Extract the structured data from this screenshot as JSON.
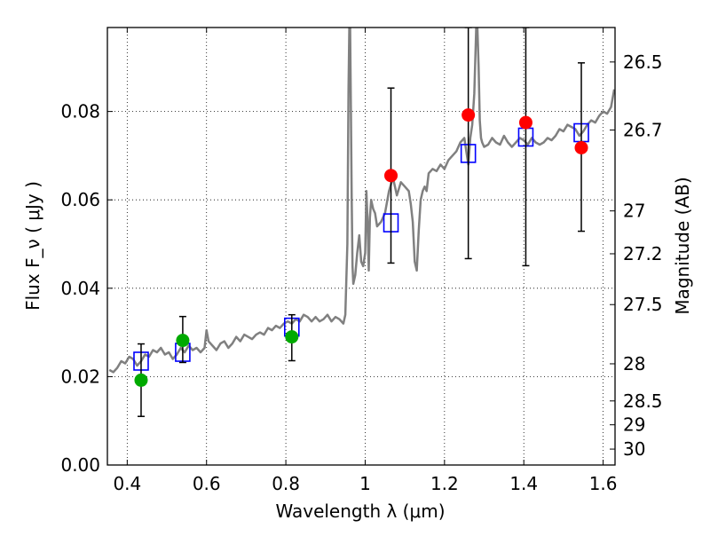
{
  "chart_data": {
    "type": "scatter",
    "xlabel": "Wavelength  λ (μm)",
    "ylabel": "Flux  F_ν  ( μJy )",
    "y2label": "Magnitude (AB)",
    "xlim": [
      0.35,
      1.63
    ],
    "ylim": [
      0.0,
      0.099
    ],
    "grid": true,
    "x_ticks": [
      0.4,
      0.6,
      0.8,
      1.0,
      1.2,
      1.4,
      1.6
    ],
    "x_tick_labels": [
      "0.4",
      "0.6",
      "0.8",
      "1",
      "1.2",
      "1.4",
      "1.6"
    ],
    "y_ticks": [
      0.0,
      0.02,
      0.04,
      0.06,
      0.08
    ],
    "y_tick_labels": [
      "0.00",
      "0.02",
      "0.04",
      "0.06",
      "0.08"
    ],
    "y2_ticks": [
      {
        "label": "26.5",
        "flux": 0.0912
      },
      {
        "label": "26.7",
        "flux": 0.0758
      },
      {
        "label": "27",
        "flux": 0.0575
      },
      {
        "label": "27.2",
        "flux": 0.0478
      },
      {
        "label": "27.5",
        "flux": 0.0363
      },
      {
        "label": "28",
        "flux": 0.0229
      },
      {
        "label": "28.5",
        "flux": 0.0145
      },
      {
        "label": "29",
        "flux": 0.0091
      },
      {
        "label": "30",
        "flux": 0.0036
      }
    ],
    "series": [
      {
        "kind": "line",
        "color": "#808080",
        "x": [
          0.355,
          0.365,
          0.375,
          0.385,
          0.395,
          0.405,
          0.415,
          0.425,
          0.435,
          0.445,
          0.455,
          0.465,
          0.475,
          0.485,
          0.495,
          0.505,
          0.515,
          0.525,
          0.535,
          0.545,
          0.555,
          0.565,
          0.575,
          0.585,
          0.595,
          0.6,
          0.605,
          0.615,
          0.625,
          0.635,
          0.645,
          0.655,
          0.665,
          0.675,
          0.685,
          0.695,
          0.705,
          0.715,
          0.725,
          0.735,
          0.745,
          0.755,
          0.765,
          0.775,
          0.785,
          0.795,
          0.805,
          0.815,
          0.825,
          0.835,
          0.845,
          0.855,
          0.865,
          0.875,
          0.885,
          0.895,
          0.905,
          0.915,
          0.925,
          0.935,
          0.945,
          0.95,
          0.955,
          0.958,
          0.96,
          0.962,
          0.964,
          0.966,
          0.968,
          0.97,
          0.975,
          0.98,
          0.985,
          0.99,
          0.995,
          1.0,
          1.003,
          1.006,
          1.009,
          1.012,
          1.015,
          1.02,
          1.025,
          1.03,
          1.04,
          1.05,
          1.06,
          1.07,
          1.08,
          1.09,
          1.1,
          1.11,
          1.115,
          1.12,
          1.125,
          1.13,
          1.135,
          1.14,
          1.145,
          1.15,
          1.155,
          1.16,
          1.17,
          1.18,
          1.19,
          1.2,
          1.21,
          1.22,
          1.23,
          1.24,
          1.25,
          1.255,
          1.26,
          1.265,
          1.27,
          1.275,
          1.28,
          1.283,
          1.286,
          1.289,
          1.292,
          1.295,
          1.3,
          1.31,
          1.32,
          1.33,
          1.34,
          1.35,
          1.36,
          1.37,
          1.38,
          1.39,
          1.4,
          1.41,
          1.42,
          1.43,
          1.44,
          1.45,
          1.46,
          1.47,
          1.48,
          1.49,
          1.5,
          1.51,
          1.52,
          1.53,
          1.54,
          1.55,
          1.56,
          1.57,
          1.58,
          1.59,
          1.6,
          1.61,
          1.62,
          1.628
        ],
        "y": [
          0.0215,
          0.021,
          0.022,
          0.0235,
          0.023,
          0.0245,
          0.024,
          0.0225,
          0.0235,
          0.025,
          0.0245,
          0.026,
          0.0255,
          0.0265,
          0.025,
          0.0255,
          0.024,
          0.025,
          0.0265,
          0.0255,
          0.027,
          0.026,
          0.0265,
          0.0255,
          0.0265,
          0.0305,
          0.028,
          0.027,
          0.026,
          0.0275,
          0.028,
          0.0265,
          0.0275,
          0.029,
          0.028,
          0.0295,
          0.029,
          0.0285,
          0.0295,
          0.03,
          0.0295,
          0.031,
          0.0305,
          0.0315,
          0.031,
          0.032,
          0.0325,
          0.032,
          0.033,
          0.0325,
          0.034,
          0.0335,
          0.0325,
          0.0335,
          0.0325,
          0.033,
          0.034,
          0.0325,
          0.0335,
          0.033,
          0.032,
          0.034,
          0.05,
          0.085,
          0.099,
          0.099,
          0.08,
          0.06,
          0.045,
          0.041,
          0.043,
          0.048,
          0.052,
          0.046,
          0.045,
          0.048,
          0.062,
          0.055,
          0.044,
          0.056,
          0.06,
          0.058,
          0.057,
          0.054,
          0.055,
          0.057,
          0.062,
          0.065,
          0.061,
          0.064,
          0.063,
          0.062,
          0.059,
          0.055,
          0.046,
          0.044,
          0.053,
          0.06,
          0.062,
          0.063,
          0.062,
          0.066,
          0.067,
          0.0665,
          0.068,
          0.067,
          0.069,
          0.07,
          0.071,
          0.073,
          0.074,
          0.071,
          0.068,
          0.074,
          0.077,
          0.084,
          0.099,
          0.099,
          0.09,
          0.078,
          0.074,
          0.073,
          0.072,
          0.0725,
          0.074,
          0.073,
          0.0725,
          0.0745,
          0.073,
          0.072,
          0.073,
          0.074,
          0.0735,
          0.0725,
          0.074,
          0.073,
          0.0725,
          0.073,
          0.074,
          0.0735,
          0.0745,
          0.076,
          0.0755,
          0.077,
          0.0765,
          0.076,
          0.0745,
          0.0755,
          0.077,
          0.078,
          0.0775,
          0.079,
          0.08,
          0.0795,
          0.081,
          0.085
        ]
      },
      {
        "kind": "points",
        "color": "#00aa00",
        "x": [
          0.435,
          0.54,
          0.815
        ],
        "y": [
          0.0192,
          0.0282,
          0.029
        ],
        "err_lo": [
          0.011,
          0.0232,
          0.0236
        ],
        "err_hi": [
          0.0274,
          0.0336,
          0.034
        ]
      },
      {
        "kind": "points",
        "color": "#ff0000",
        "x": [
          1.065,
          1.26,
          1.405,
          1.545
        ],
        "y": [
          0.0655,
          0.0792,
          0.0775,
          0.0718
        ],
        "err_lo": [
          0.0457,
          0.0467,
          0.0451,
          0.0529
        ],
        "err_hi": [
          0.0853,
          0.099,
          0.099,
          0.091
        ]
      },
      {
        "kind": "model-boxes",
        "color": "#0000ff",
        "x": [
          0.435,
          0.54,
          0.815,
          1.065,
          1.26,
          1.405,
          1.545
        ],
        "y": [
          0.0235,
          0.0255,
          0.0312,
          0.0548,
          0.0705,
          0.0742,
          0.0752
        ]
      }
    ]
  }
}
